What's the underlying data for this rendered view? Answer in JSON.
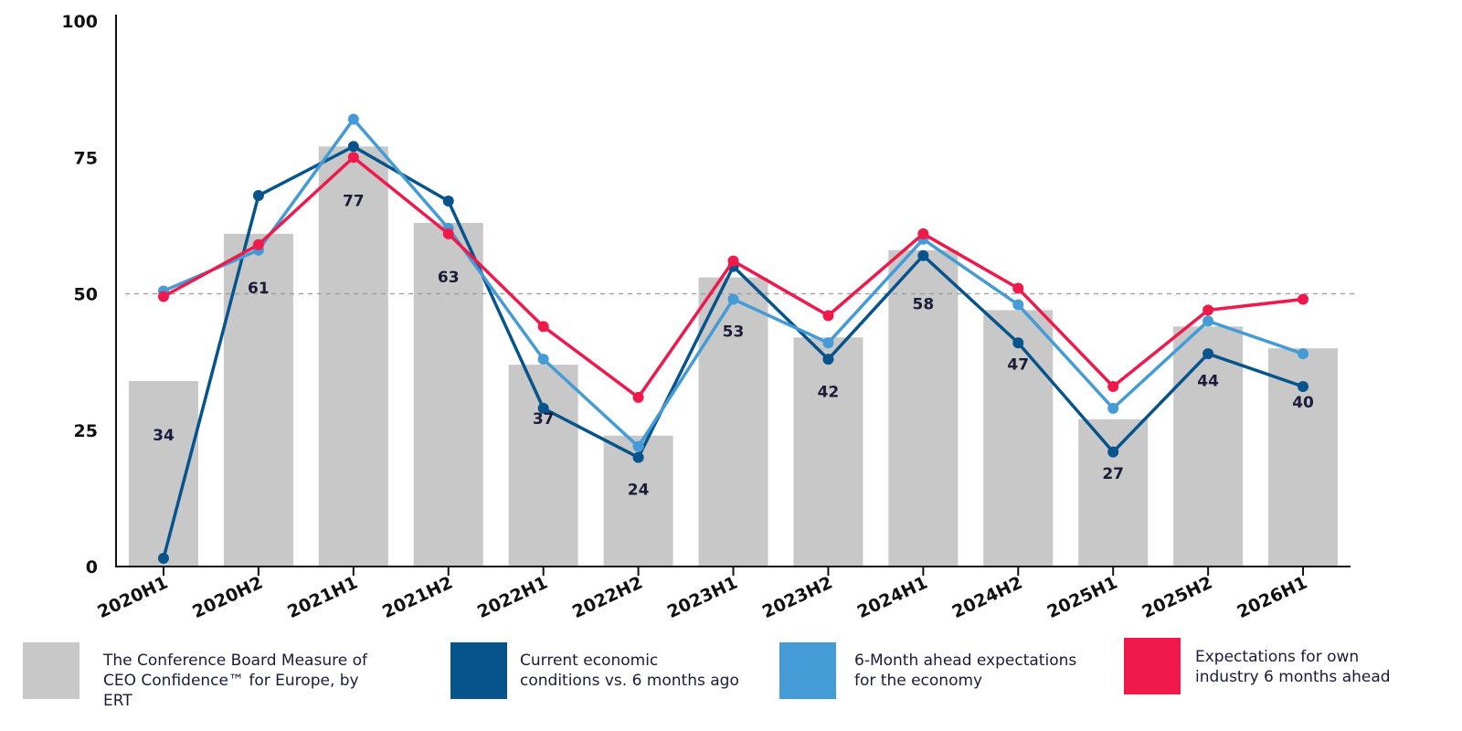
{
  "chart_data": {
    "type": "bar",
    "categories": [
      "2020H1",
      "2020H2",
      "2021H1",
      "2021H2",
      "2022H1",
      "2022H2",
      "2023H1",
      "2023H2",
      "2024H1",
      "2024H2",
      "2025H1",
      "2025H2",
      "2026H1"
    ],
    "ylim": [
      0,
      100
    ],
    "yticks": [
      "0",
      "25",
      "50",
      "75",
      "100"
    ],
    "reference_line": 50,
    "bars": {
      "name": "The Conference Board Measure of CEO Confidence™ for Europe, by ERT",
      "values": [
        34,
        61,
        77,
        63,
        37,
        24,
        53,
        42,
        58,
        47,
        27,
        44,
        40
      ],
      "labels": [
        "34",
        "61",
        "77",
        "63",
        "37",
        "24",
        "53",
        "42",
        "58",
        "47",
        "27",
        "44",
        "40"
      ],
      "color": "#c8c8c8"
    },
    "series": [
      {
        "name": "Current economic conditions vs. 6 months ago",
        "color": "#06548b",
        "values": [
          1.5,
          68,
          77,
          67,
          29,
          20,
          55,
          38,
          57,
          41,
          21,
          39,
          33
        ]
      },
      {
        "name": "6-Month ahead expectations for the economy",
        "color": "#449bd6",
        "values": [
          50.5,
          58,
          82,
          62,
          38,
          22,
          49,
          41,
          60,
          48,
          29,
          45,
          39
        ]
      },
      {
        "name": "Expectations for own industry 6 months ahead",
        "color": "#f0194b",
        "values": [
          49.5,
          59,
          75,
          61,
          44,
          31,
          56,
          46,
          61,
          51,
          33,
          47,
          49
        ]
      }
    ],
    "legend_placement": "bottom",
    "grid": false
  },
  "legend": [
    {
      "label_line1": "The Conference Board Measure of",
      "label_line2": "CEO Confidence™ for Europe, by ERT",
      "color": "#c8c8c8"
    },
    {
      "label_line1": "Current economic",
      "label_line2": "conditions vs. 6 months ago",
      "color": "#06548b"
    },
    {
      "label_line1": "6-Month ahead expectations",
      "label_line2": "for the economy",
      "color": "#449bd6"
    },
    {
      "label_line1": "Expectations for own",
      "label_line2": "industry 6 months ahead",
      "color": "#f0194b"
    }
  ]
}
